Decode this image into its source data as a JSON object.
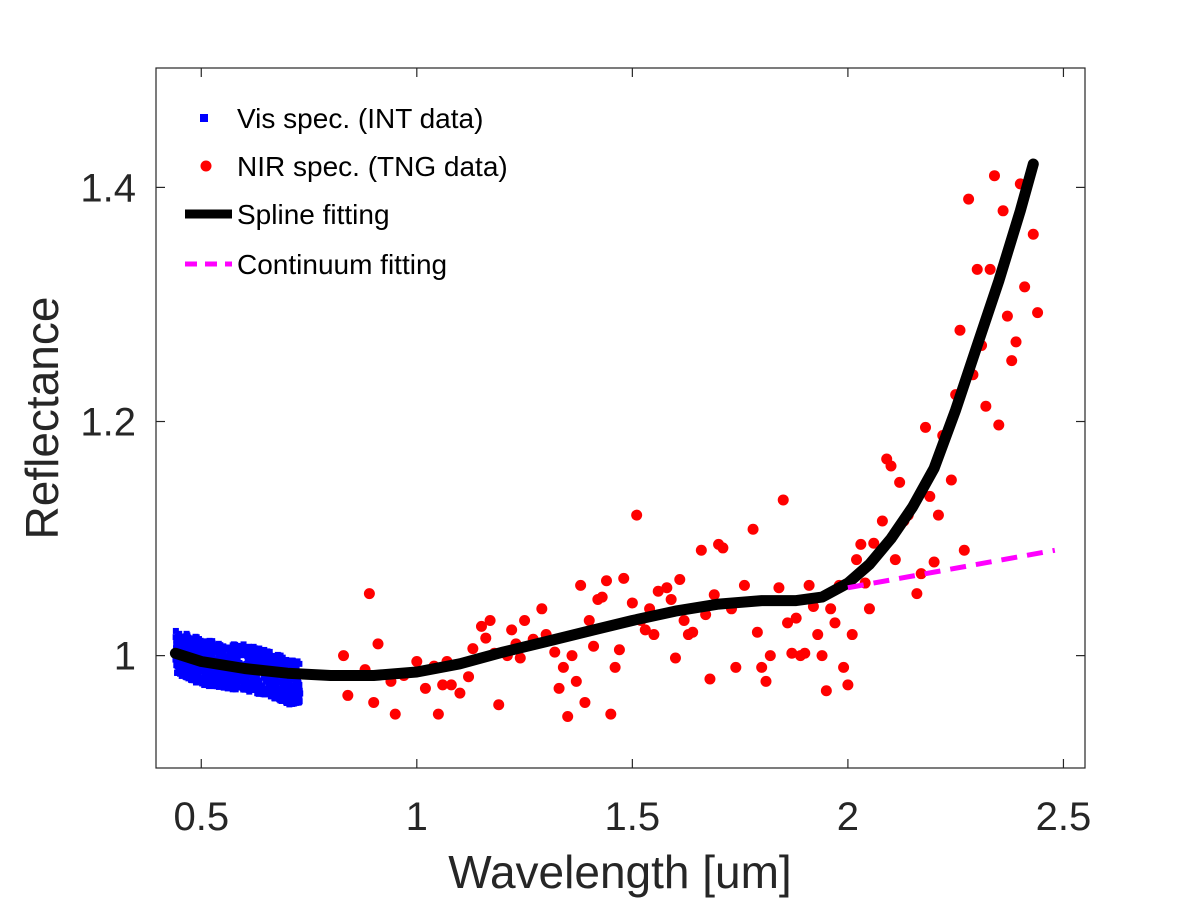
{
  "chart_data": {
    "type": "scatter",
    "xlabel": "Wavelength [um]",
    "ylabel": "Reflectance",
    "xlim": [
      0.395,
      2.55
    ],
    "ylim": [
      0.904,
      1.502
    ],
    "xticks": [
      {
        "value": 0.5,
        "label": "0.5"
      },
      {
        "value": 1,
        "label": "1"
      },
      {
        "value": 1.5,
        "label": "1.5"
      },
      {
        "value": 2,
        "label": "2"
      },
      {
        "value": 2.5,
        "label": "2.5"
      }
    ],
    "yticks": [
      {
        "value": 1.0,
        "label": "1"
      },
      {
        "value": 1.2,
        "label": "1.2"
      },
      {
        "value": 1.4,
        "label": "1.4"
      }
    ],
    "grid": false,
    "legend_position": "top-left",
    "series": [
      {
        "name": "Vis spec. (INT data)",
        "kind": "dense-points",
        "color": "#0000ff",
        "x_range": [
          0.44,
          0.73
        ],
        "envelope": [
          {
            "x": 0.44,
            "ymin": 0.985,
            "ymax": 1.022
          },
          {
            "x": 0.5,
            "ymin": 0.975,
            "ymax": 1.015
          },
          {
            "x": 0.55,
            "ymin": 0.972,
            "ymax": 1.01
          },
          {
            "x": 0.6,
            "ymin": 0.97,
            "ymax": 1.01
          },
          {
            "x": 0.65,
            "ymin": 0.966,
            "ymax": 1.005
          },
          {
            "x": 0.7,
            "ymin": 0.958,
            "ymax": 0.998
          },
          {
            "x": 0.73,
            "ymin": 0.96,
            "ymax": 0.995
          }
        ]
      },
      {
        "name": "NIR spec. (TNG data)",
        "kind": "points",
        "color": "#ff0000",
        "points": [
          [
            0.83,
            1.0
          ],
          [
            0.84,
            0.966
          ],
          [
            0.88,
            0.988
          ],
          [
            0.89,
            1.053
          ],
          [
            0.9,
            0.96
          ],
          [
            0.91,
            1.01
          ],
          [
            0.94,
            0.978
          ],
          [
            0.95,
            0.95
          ],
          [
            0.97,
            0.983
          ],
          [
            1.0,
            0.995
          ],
          [
            1.02,
            0.972
          ],
          [
            1.04,
            0.991
          ],
          [
            1.05,
            0.95
          ],
          [
            1.06,
            0.975
          ],
          [
            1.07,
            0.995
          ],
          [
            1.08,
            0.975
          ],
          [
            1.1,
            0.968
          ],
          [
            1.12,
            0.982
          ],
          [
            1.13,
            1.006
          ],
          [
            1.15,
            1.025
          ],
          [
            1.16,
            1.015
          ],
          [
            1.17,
            1.03
          ],
          [
            1.18,
            1.002
          ],
          [
            1.19,
            0.958
          ],
          [
            1.21,
            1.0
          ],
          [
            1.22,
            1.022
          ],
          [
            1.23,
            1.01
          ],
          [
            1.24,
            0.998
          ],
          [
            1.25,
            1.03
          ],
          [
            1.27,
            1.014
          ],
          [
            1.29,
            1.04
          ],
          [
            1.3,
            1.018
          ],
          [
            1.32,
            1.003
          ],
          [
            1.33,
            0.972
          ],
          [
            1.34,
            0.99
          ],
          [
            1.35,
            0.948
          ],
          [
            1.36,
            1.0
          ],
          [
            1.37,
            0.978
          ],
          [
            1.38,
            1.06
          ],
          [
            1.39,
            0.96
          ],
          [
            1.4,
            1.03
          ],
          [
            1.41,
            1.008
          ],
          [
            1.42,
            1.048
          ],
          [
            1.43,
            1.05
          ],
          [
            1.44,
            1.064
          ],
          [
            1.45,
            0.95
          ],
          [
            1.46,
            0.99
          ],
          [
            1.47,
            1.005
          ],
          [
            1.48,
            1.066
          ],
          [
            1.5,
            1.045
          ],
          [
            1.51,
            1.12
          ],
          [
            1.52,
            1.03
          ],
          [
            1.53,
            1.022
          ],
          [
            1.54,
            1.04
          ],
          [
            1.55,
            1.018
          ],
          [
            1.56,
            1.055
          ],
          [
            1.58,
            1.058
          ],
          [
            1.59,
            1.048
          ],
          [
            1.6,
            0.998
          ],
          [
            1.61,
            1.065
          ],
          [
            1.62,
            1.03
          ],
          [
            1.63,
            1.018
          ],
          [
            1.64,
            1.02
          ],
          [
            1.66,
            1.09
          ],
          [
            1.67,
            1.035
          ],
          [
            1.68,
            0.98
          ],
          [
            1.69,
            1.052
          ],
          [
            1.7,
            1.095
          ],
          [
            1.71,
            1.092
          ],
          [
            1.73,
            1.04
          ],
          [
            1.74,
            0.99
          ],
          [
            1.76,
            1.06
          ],
          [
            1.78,
            1.108
          ],
          [
            1.79,
            1.02
          ],
          [
            1.8,
            0.99
          ],
          [
            1.81,
            0.978
          ],
          [
            1.82,
            1.0
          ],
          [
            1.84,
            1.058
          ],
          [
            1.85,
            1.133
          ],
          [
            1.86,
            1.028
          ],
          [
            1.87,
            1.002
          ],
          [
            1.88,
            1.032
          ],
          [
            1.89,
            1.0
          ],
          [
            1.9,
            1.002
          ],
          [
            1.91,
            1.06
          ],
          [
            1.92,
            1.042
          ],
          [
            1.93,
            1.018
          ],
          [
            1.94,
            1.0
          ],
          [
            1.95,
            0.97
          ],
          [
            1.96,
            1.04
          ],
          [
            1.97,
            1.028
          ],
          [
            1.98,
            1.06
          ],
          [
            1.99,
            0.99
          ],
          [
            2.0,
            0.975
          ],
          [
            2.01,
            1.018
          ],
          [
            2.02,
            1.082
          ],
          [
            2.03,
            1.095
          ],
          [
            2.04,
            1.062
          ],
          [
            2.05,
            1.04
          ],
          [
            2.06,
            1.096
          ],
          [
            2.08,
            1.115
          ],
          [
            2.09,
            1.168
          ],
          [
            2.1,
            1.162
          ],
          [
            2.11,
            1.082
          ],
          [
            2.12,
            1.148
          ],
          [
            2.13,
            1.115
          ],
          [
            2.14,
            1.12
          ],
          [
            2.16,
            1.053
          ],
          [
            2.17,
            1.07
          ],
          [
            2.18,
            1.195
          ],
          [
            2.19,
            1.136
          ],
          [
            2.2,
            1.08
          ],
          [
            2.21,
            1.12
          ],
          [
            2.22,
            1.188
          ],
          [
            2.24,
            1.15
          ],
          [
            2.25,
            1.223
          ],
          [
            2.26,
            1.278
          ],
          [
            2.27,
            1.09
          ],
          [
            2.28,
            1.39
          ],
          [
            2.29,
            1.24
          ],
          [
            2.3,
            1.33
          ],
          [
            2.31,
            1.265
          ],
          [
            2.32,
            1.213
          ],
          [
            2.33,
            1.33
          ],
          [
            2.34,
            1.41
          ],
          [
            2.35,
            1.197
          ],
          [
            2.36,
            1.38
          ],
          [
            2.37,
            1.29
          ],
          [
            2.38,
            1.252
          ],
          [
            2.39,
            1.268
          ],
          [
            2.4,
            1.403
          ],
          [
            2.41,
            1.315
          ],
          [
            2.43,
            1.36
          ],
          [
            2.44,
            1.293
          ]
        ]
      },
      {
        "name": "Spline fitting",
        "kind": "line",
        "color": "#000000",
        "points": [
          [
            0.44,
            1.002
          ],
          [
            0.5,
            0.995
          ],
          [
            0.6,
            0.989
          ],
          [
            0.7,
            0.985
          ],
          [
            0.8,
            0.983
          ],
          [
            0.9,
            0.983
          ],
          [
            1.0,
            0.986
          ],
          [
            1.1,
            0.993
          ],
          [
            1.2,
            1.003
          ],
          [
            1.3,
            1.012
          ],
          [
            1.4,
            1.021
          ],
          [
            1.5,
            1.03
          ],
          [
            1.6,
            1.038
          ],
          [
            1.7,
            1.044
          ],
          [
            1.8,
            1.047
          ],
          [
            1.88,
            1.047
          ],
          [
            1.94,
            1.05
          ],
          [
            2.0,
            1.062
          ],
          [
            2.05,
            1.078
          ],
          [
            2.1,
            1.1
          ],
          [
            2.15,
            1.127
          ],
          [
            2.2,
            1.16
          ],
          [
            2.25,
            1.21
          ],
          [
            2.3,
            1.265
          ],
          [
            2.35,
            1.32
          ],
          [
            2.4,
            1.38
          ],
          [
            2.43,
            1.42
          ]
        ]
      },
      {
        "name": "Continuum fitting",
        "kind": "dashed-line",
        "color": "#ff00ff",
        "points": [
          [
            2.0,
            1.058
          ],
          [
            2.48,
            1.09
          ]
        ]
      }
    ]
  }
}
